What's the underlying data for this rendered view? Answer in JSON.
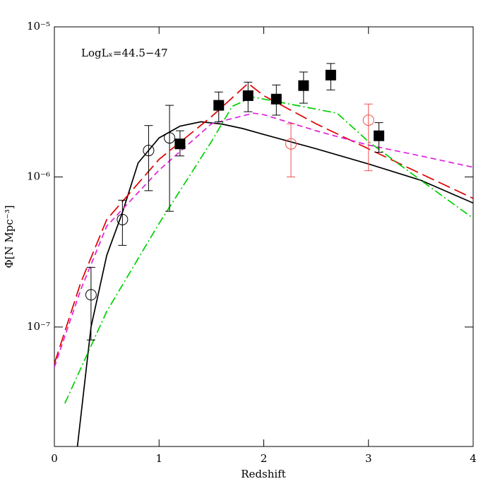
{
  "chart_data": {
    "type": "line",
    "x_label": "Redshift",
    "y_label": "Φ[N Mpc⁻³]",
    "annotation": "LogLₓ=44.5−47",
    "xlim": [
      0,
      4
    ],
    "xticks": [
      0,
      1,
      2,
      3,
      4
    ],
    "ylim": [
      1.6e-08,
      1e-05
    ],
    "yscale": "log",
    "yticks": [
      {
        "value": 1e-05,
        "label": "10⁻⁵"
      },
      {
        "value": 1e-06,
        "label": "10⁻⁶"
      },
      {
        "value": 1e-07,
        "label": "10⁻⁷"
      }
    ],
    "series": [
      {
        "color": "#000000",
        "style": "solid",
        "x": [
          0.22,
          0.35,
          0.5,
          0.65,
          0.8,
          1.0,
          1.2,
          1.4,
          1.6,
          1.8,
          2.0,
          2.5,
          3.0,
          3.5,
          4.0
        ],
        "values": [
          1.6e-08,
          1e-07,
          3e-07,
          5.8e-07,
          1.24e-06,
          1.82e-06,
          2.18e-06,
          2.33e-06,
          2.25e-06,
          2.1e-06,
          1.92e-06,
          1.54e-06,
          1.22e-06,
          9.5e-07,
          6.7e-07
        ]
      },
      {
        "color": "#e00000",
        "style": "longdash",
        "x": [
          0,
          0.25,
          0.5,
          1.0,
          1.5,
          1.85,
          2.0,
          2.5,
          3.0,
          3.5,
          4.0
        ],
        "values": [
          5.7e-08,
          1.96e-07,
          5.2e-07,
          1.31e-06,
          2.52e-06,
          4.2e-06,
          3.48e-06,
          2.26e-06,
          1.54e-06,
          1.05e-06,
          7.2e-07
        ]
      },
      {
        "color": "#e020e0",
        "style": "dash",
        "x": [
          0,
          0.25,
          0.5,
          1.0,
          1.5,
          1.9,
          2.0,
          2.5,
          3.0,
          3.5,
          4.0
        ],
        "values": [
          5.4e-08,
          1.76e-07,
          4.7e-07,
          1.11e-06,
          2.26e-06,
          2.66e-06,
          2.6e-06,
          2.03e-06,
          1.63e-06,
          1.38e-06,
          1.16e-06
        ]
      },
      {
        "color": "#00d000",
        "style": "dashdot",
        "x": [
          0.1,
          0.5,
          1.0,
          1.5,
          1.7,
          1.9,
          2.0,
          2.7,
          3.0,
          3.5,
          4.0
        ],
        "values": [
          3.1e-08,
          1.27e-07,
          4.9e-07,
          1.72e-06,
          2.96e-06,
          3.4e-06,
          3.3e-06,
          2.66e-06,
          1.72e-06,
          9.5e-07,
          5.3e-07
        ]
      },
      {
        "color": "#000000",
        "marker": "circle",
        "x": [
          0.35,
          0.65,
          0.9,
          1.1
        ],
        "values": [
          1.64e-07,
          5.2e-07,
          1.5e-06,
          1.82e-06
        ],
        "lower": [
          8.2e-08,
          3.5e-07,
          8.1e-07,
          5.9e-07
        ],
        "upper": [
          2.5e-07,
          7e-07,
          2.2e-06,
          3e-06
        ]
      },
      {
        "color": "#f05050",
        "marker": "circle",
        "x": [
          2.26,
          3.0
        ],
        "values": [
          1.66e-06,
          2.39e-06
        ],
        "lower": [
          1e-06,
          1.1e-06
        ],
        "upper": [
          2.26e-06,
          3.06e-06
        ]
      },
      {
        "color": "#000000",
        "marker": "square",
        "x": [
          1.2,
          1.57,
          1.85,
          2.12,
          2.38,
          2.64,
          3.1
        ],
        "values": [
          1.66e-06,
          3e-06,
          3.48e-06,
          3.3e-06,
          4.06e-06,
          4.77e-06,
          1.88e-06
        ],
        "lower": [
          1.38e-06,
          2.33e-06,
          2.72e-06,
          2.58e-06,
          3.1e-06,
          3.8e-06,
          1.46e-06
        ],
        "upper": [
          2.03e-06,
          3.68e-06,
          4.28e-06,
          4.1e-06,
          5e-06,
          5.7e-06,
          2.3e-06
        ]
      }
    ]
  }
}
